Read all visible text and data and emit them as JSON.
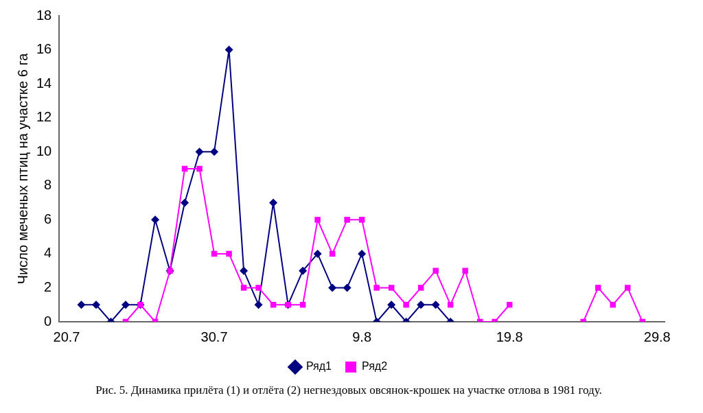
{
  "chart_data": {
    "type": "line",
    "ylabel": "Число меченых птиц на участке 6 га",
    "categories": [
      "20.7",
      null,
      null,
      null,
      null,
      null,
      null,
      null,
      null,
      null,
      "30.7",
      null,
      null,
      null,
      null,
      null,
      null,
      null,
      null,
      null,
      "9.8",
      null,
      null,
      null,
      null,
      null,
      null,
      null,
      null,
      null,
      "19.8",
      null,
      null,
      null,
      null,
      null,
      null,
      null,
      null,
      null,
      "29.8"
    ],
    "ylim": [
      0,
      18
    ],
    "yticks": [
      0,
      2,
      4,
      6,
      8,
      10,
      12,
      14,
      16,
      18
    ],
    "grid": false,
    "legend": "bottom",
    "series": [
      {
        "name": "Ряд1",
        "color": "#000080",
        "marker": "diamond",
        "values": [
          null,
          1,
          1,
          0,
          1,
          1,
          6,
          3,
          7,
          10,
          10,
          16,
          3,
          1,
          7,
          1,
          3,
          4,
          2,
          2,
          4,
          0,
          1,
          0,
          1,
          1,
          0,
          null,
          null,
          null,
          null,
          null,
          null,
          null,
          null,
          null,
          null,
          null,
          null,
          null,
          null
        ]
      },
      {
        "name": "Ряд2",
        "color": "#ff00ff",
        "marker": "square",
        "values": [
          null,
          null,
          null,
          null,
          0,
          1,
          0,
          3,
          9,
          9,
          4,
          4,
          2,
          2,
          1,
          1,
          1,
          6,
          4,
          6,
          6,
          2,
          2,
          1,
          2,
          3,
          1,
          3,
          0,
          0,
          1,
          null,
          null,
          null,
          null,
          0,
          2,
          1,
          2,
          0,
          null
        ]
      }
    ],
    "annotations": [
      "Рис. 5. Динамика прилёта (1) и отлёта (2) негнездовых овсянок-крошек на участке отлова в 1981 году."
    ]
  }
}
